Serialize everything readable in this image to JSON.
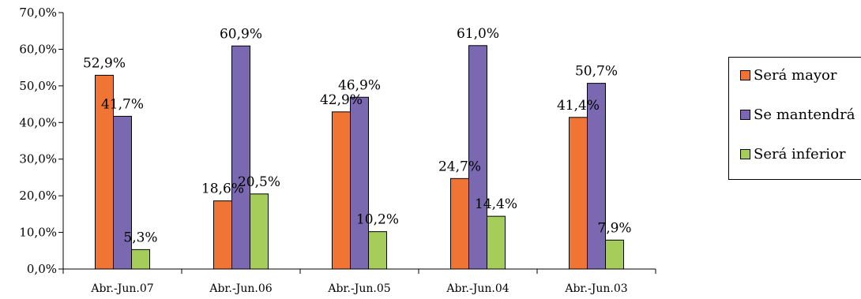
{
  "chart_data": {
    "type": "bar",
    "title": "",
    "xlabel": "",
    "ylabel": "",
    "categories": [
      "Abr.-Jun.07",
      "Abr.-Jun.06",
      "Abr.-Jun.05",
      "Abr.-Jun.04",
      "Abr.-Jun.03"
    ],
    "series": [
      {
        "name": "Será mayor",
        "color": "#f07434",
        "values": [
          52.9,
          18.6,
          42.9,
          24.7,
          41.4
        ],
        "labels": [
          "52,9%",
          "18,6%",
          "42,9%",
          "24,7%",
          "41,4%"
        ]
      },
      {
        "name": "Se mantendrá",
        "color": "#7a68b0",
        "values": [
          41.7,
          60.9,
          46.9,
          61.0,
          50.7
        ],
        "labels": [
          "41,7%",
          "60,9%",
          "46,9%",
          "61,0%",
          "50,7%"
        ]
      },
      {
        "name": "Será inferior",
        "color": "#a6cc5a",
        "values": [
          5.3,
          20.5,
          10.2,
          14.4,
          7.9
        ],
        "labels": [
          "5,3%",
          "20,5%",
          "10,2%",
          "14,4%",
          "7,9%"
        ]
      }
    ],
    "ylim": [
      0,
      70
    ],
    "yticks": [
      "0,0%",
      "10,0%",
      "20,0%",
      "30,0%",
      "40,0%",
      "50,0%",
      "60,0%",
      "70,0%"
    ],
    "grid": false,
    "legend_position": "right"
  }
}
